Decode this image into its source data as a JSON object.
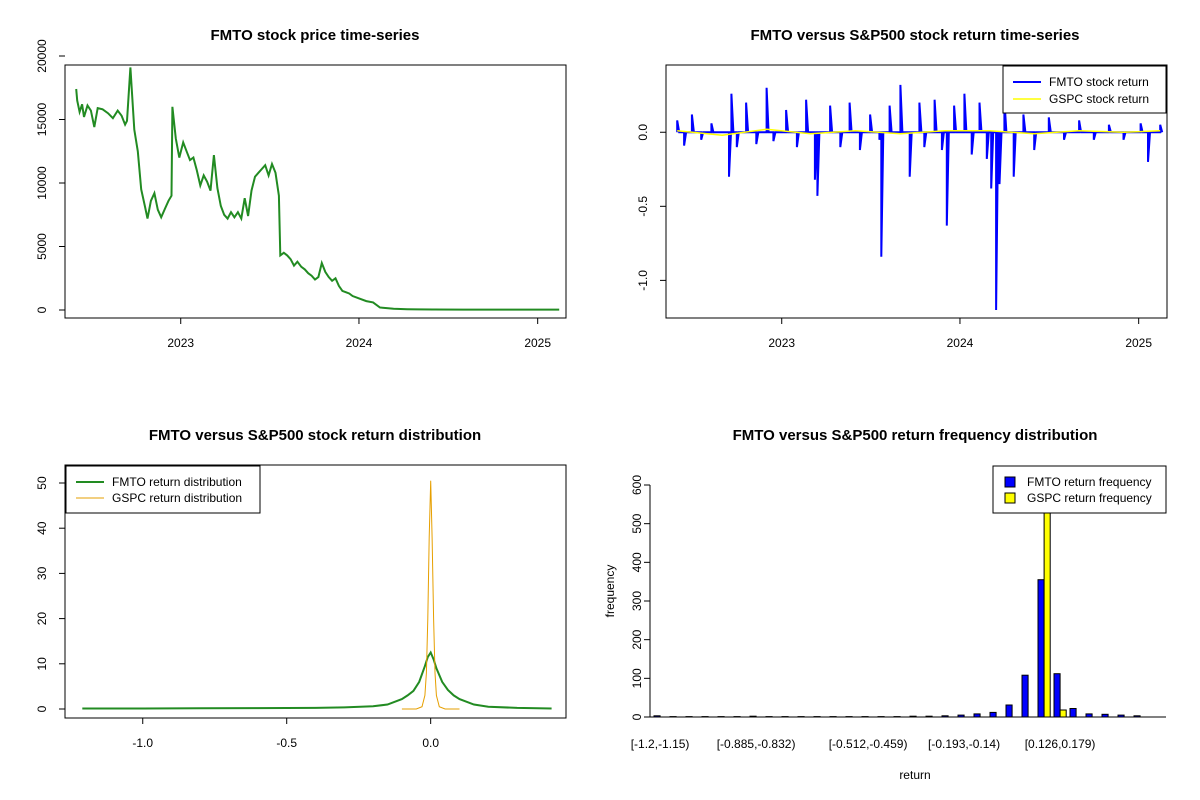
{
  "chart_data": [
    {
      "type": "line",
      "title": "FMTO stock price time-series",
      "xlabel": "",
      "ylabel": "",
      "x_ticks": [
        "2023",
        "2024",
        "2025"
      ],
      "y_ticks": [
        "0",
        "5000",
        "10000",
        "15000",
        "20000"
      ],
      "ylim": [
        0,
        20000
      ],
      "xlim": [
        "2022-05-09",
        "2025-02-28"
      ],
      "grid": false,
      "colors": {
        "series": "#228b22"
      },
      "series": [
        {
          "x": [
            "2022-06-01",
            "2022-06-03",
            "2022-06-08",
            "2022-06-13",
            "2022-06-17",
            "2022-06-24",
            "2022-07-01",
            "2022-07-08",
            "2022-07-15",
            "2022-07-25",
            "2022-08-05",
            "2022-08-15",
            "2022-08-25",
            "2022-09-02",
            "2022-09-09",
            "2022-09-13",
            "2022-09-20",
            "2022-09-28",
            "2022-10-05",
            "2022-10-12",
            "2022-10-20",
            "2022-10-25",
            "2022-11-01",
            "2022-11-08",
            "2022-11-15",
            "2022-11-22",
            "2022-11-30",
            "2022-12-07",
            "2022-12-13",
            "2022-12-15",
            "2022-12-22",
            "2022-12-29",
            "2023-01-06",
            "2023-01-13",
            "2023-01-20",
            "2023-01-27",
            "2023-02-03",
            "2023-02-10",
            "2023-02-17",
            "2023-02-24",
            "2023-03-03",
            "2023-03-10",
            "2023-03-17",
            "2023-03-24",
            "2023-03-31",
            "2023-04-07",
            "2023-04-14",
            "2023-04-21",
            "2023-04-28",
            "2023-05-05",
            "2023-05-12",
            "2023-05-19",
            "2023-05-26",
            "2023-06-02",
            "2023-06-09",
            "2023-06-16",
            "2023-06-23",
            "2023-06-30",
            "2023-07-07",
            "2023-07-14",
            "2023-07-21",
            "2023-07-24",
            "2023-07-31",
            "2023-08-07",
            "2023-08-14",
            "2023-08-21",
            "2023-08-28",
            "2023-09-05",
            "2023-09-12",
            "2023-09-19",
            "2023-09-26",
            "2023-10-03",
            "2023-10-10",
            "2023-10-17",
            "2023-10-24",
            "2023-10-31",
            "2023-11-07",
            "2023-11-14",
            "2023-11-21",
            "2023-11-28",
            "2023-12-05",
            "2023-12-12",
            "2023-12-19",
            "2024-01-02",
            "2024-01-16",
            "2024-01-30",
            "2024-02-13",
            "2024-02-27",
            "2024-03-12",
            "2024-03-26",
            "2024-04-09",
            "2024-05-01",
            "2024-06-01",
            "2024-08-01",
            "2024-10-01",
            "2024-12-01",
            "2025-02-14"
          ],
          "y": [
            17400,
            16500,
            15600,
            16200,
            15200,
            16100,
            15700,
            14400,
            15900,
            15800,
            15500,
            15100,
            15700,
            15300,
            14600,
            14900,
            19100,
            14200,
            12500,
            9500,
            8100,
            7200,
            8600,
            9200,
            7900,
            7300,
            8000,
            8600,
            9000,
            16000,
            13500,
            12000,
            13200,
            12500,
            11800,
            12000,
            11000,
            9800,
            10600,
            10100,
            9400,
            12200,
            9600,
            8200,
            7500,
            7200,
            7700,
            7300,
            7700,
            7200,
            8800,
            7400,
            9400,
            10500,
            10800,
            11100,
            11400,
            10600,
            11500,
            10800,
            9000,
            4300,
            4500,
            4300,
            4000,
            3500,
            3800,
            3400,
            3200,
            2900,
            2700,
            2400,
            2600,
            3700,
            3000,
            2600,
            2300,
            2500,
            1900,
            1500,
            1400,
            1300,
            1100,
            900,
            700,
            600,
            200,
            150,
            100,
            80,
            60,
            50,
            40,
            35,
            30,
            30,
            30
          ]
        }
      ]
    },
    {
      "type": "line",
      "title": "FMTO versus S&P500 stock return time-series",
      "xlabel": "",
      "ylabel": "",
      "x_ticks": [
        "2023",
        "2024",
        "2025"
      ],
      "y_ticks": [
        "-1.0",
        "-0.5",
        "0.0"
      ],
      "ylim": [
        -1.2,
        0.4
      ],
      "xlim": [
        "2022-05-09",
        "2025-02-28"
      ],
      "legend_placement": "top-right",
      "grid": false,
      "colors": {
        "FMTO": "#0000ff",
        "GSPC": "#ffff00"
      },
      "series": [
        {
          "name": "FMTO stock return",
          "x": [
            "2022-06-01",
            "2022-06-15",
            "2022-07-01",
            "2022-07-20",
            "2022-08-10",
            "2022-09-15",
            "2022-09-20",
            "2022-10-01",
            "2022-10-20",
            "2022-11-10",
            "2022-12-01",
            "2022-12-15",
            "2023-01-10",
            "2023-02-01",
            "2023-02-20",
            "2023-03-10",
            "2023-03-15",
            "2023-04-10",
            "2023-05-01",
            "2023-05-20",
            "2023-06-10",
            "2023-07-01",
            "2023-07-20",
            "2023-07-24",
            "2023-08-10",
            "2023-09-01",
            "2023-09-20",
            "2023-10-10",
            "2023-10-20",
            "2023-11-10",
            "2023-11-25",
            "2023-12-05",
            "2023-12-20",
            "2024-01-10",
            "2024-01-25",
            "2024-02-10",
            "2024-02-25",
            "2024-03-05",
            "2024-03-15",
            "2024-03-22",
            "2024-04-01",
            "2024-04-20",
            "2024-05-10",
            "2024-06-01",
            "2024-07-01",
            "2024-08-01",
            "2024-09-01",
            "2024-10-01",
            "2024-11-01",
            "2024-12-01",
            "2025-01-05",
            "2025-01-20",
            "2025-02-14"
          ],
          "y": [
            0.08,
            -0.09,
            0.12,
            -0.05,
            0.06,
            -0.3,
            0.26,
            -0.1,
            0.2,
            -0.08,
            0.3,
            -0.06,
            0.15,
            -0.1,
            0.22,
            -0.32,
            -0.43,
            0.18,
            -0.1,
            0.2,
            -0.12,
            0.12,
            -0.05,
            -0.84,
            0.18,
            0.32,
            -0.3,
            0.2,
            -0.1,
            0.22,
            -0.12,
            -0.63,
            0.18,
            0.26,
            -0.15,
            0.2,
            -0.18,
            -0.38,
            -1.2,
            -0.35,
            0.22,
            -0.3,
            0.12,
            -0.12,
            0.1,
            -0.05,
            0.08,
            -0.05,
            0.05,
            -0.05,
            0.06,
            -0.2,
            0.05
          ]
        },
        {
          "name": "GSPC stock return",
          "x": [
            "2022-06-01",
            "2022-09-01",
            "2022-12-01",
            "2023-03-01",
            "2023-06-01",
            "2023-09-01",
            "2023-12-01",
            "2024-03-01",
            "2024-06-01",
            "2024-09-01",
            "2024-12-01",
            "2025-02-14"
          ],
          "y": [
            0.01,
            -0.02,
            0.02,
            -0.01,
            0.01,
            -0.01,
            0.01,
            0.01,
            -0.01,
            0.01,
            0.0,
            0.01
          ]
        }
      ]
    },
    {
      "type": "line",
      "title": "FMTO versus S&P500 stock return distribution",
      "xlabel": "",
      "ylabel": "",
      "x_ticks": [
        "-1.0",
        "-0.5",
        "0.0"
      ],
      "y_ticks": [
        "0",
        "10",
        "20",
        "30",
        "40",
        "50"
      ],
      "xlim": [
        -1.27,
        0.47
      ],
      "ylim": [
        -1.5,
        54
      ],
      "legend_placement": "top-left",
      "grid": false,
      "colors": {
        "FMTO": "#228b22",
        "GSPC": "#e69f00"
      },
      "series": [
        {
          "name": "FMTO return distribution",
          "x": [
            -1.21,
            -1.0,
            -0.8,
            -0.6,
            -0.4,
            -0.3,
            -0.2,
            -0.15,
            -0.1,
            -0.08,
            -0.06,
            -0.04,
            -0.02,
            -0.01,
            0.0,
            0.01,
            0.02,
            0.04,
            0.06,
            0.08,
            0.1,
            0.15,
            0.2,
            0.3,
            0.42
          ],
          "y": [
            0.1,
            0.1,
            0.15,
            0.2,
            0.25,
            0.35,
            0.6,
            1.0,
            2.2,
            3.0,
            4.0,
            6.0,
            9.5,
            11.5,
            12.5,
            11.0,
            9.0,
            6.0,
            4.2,
            3.0,
            2.2,
            1.0,
            0.5,
            0.25,
            0.1
          ]
        },
        {
          "name": "GSPC return distribution",
          "x": [
            -0.1,
            -0.05,
            -0.03,
            -0.02,
            -0.015,
            -0.01,
            -0.005,
            0.0,
            0.005,
            0.01,
            0.015,
            0.02,
            0.03,
            0.05,
            0.1
          ],
          "y": [
            0,
            0,
            0.5,
            3,
            8,
            20,
            38,
            50.5,
            38,
            20,
            8,
            3,
            0.5,
            0,
            0
          ]
        }
      ]
    },
    {
      "type": "bar",
      "title": "FMTO versus S&P500 return frequency distribution",
      "xlabel": "return",
      "ylabel": "frequency",
      "x_tick_labels": [
        "[-1.2,-1.15)",
        "[-0.885,-0.832)",
        "[-0.512,-0.459)",
        "[-0.193,-0.14)",
        "[0.126,0.179)"
      ],
      "y_ticks": [
        "0",
        "100",
        "200",
        "300",
        "400",
        "500",
        "600"
      ],
      "ylim": [
        0,
        640
      ],
      "legend_placement": "top-right",
      "grid": false,
      "colors": {
        "FMTO": "#0000ff",
        "GSPC": "#ffff00"
      },
      "bin_count": 31,
      "series": [
        {
          "name": "FMTO return frequency",
          "values": [
            3,
            1,
            1,
            1,
            1,
            1,
            2,
            1,
            1,
            1,
            1,
            1,
            1,
            1,
            1,
            1,
            2,
            2,
            3,
            5,
            8,
            12,
            31,
            108,
            355,
            112,
            22,
            8,
            7,
            5,
            3
          ]
        },
        {
          "name": "GSPC return frequency",
          "values": [
            0,
            0,
            0,
            0,
            0,
            0,
            0,
            0,
            0,
            0,
            0,
            0,
            0,
            0,
            0,
            0,
            0,
            0,
            0,
            0,
            0,
            0,
            0,
            0,
            650,
            18,
            0,
            0,
            0,
            0,
            0
          ]
        }
      ]
    }
  ]
}
